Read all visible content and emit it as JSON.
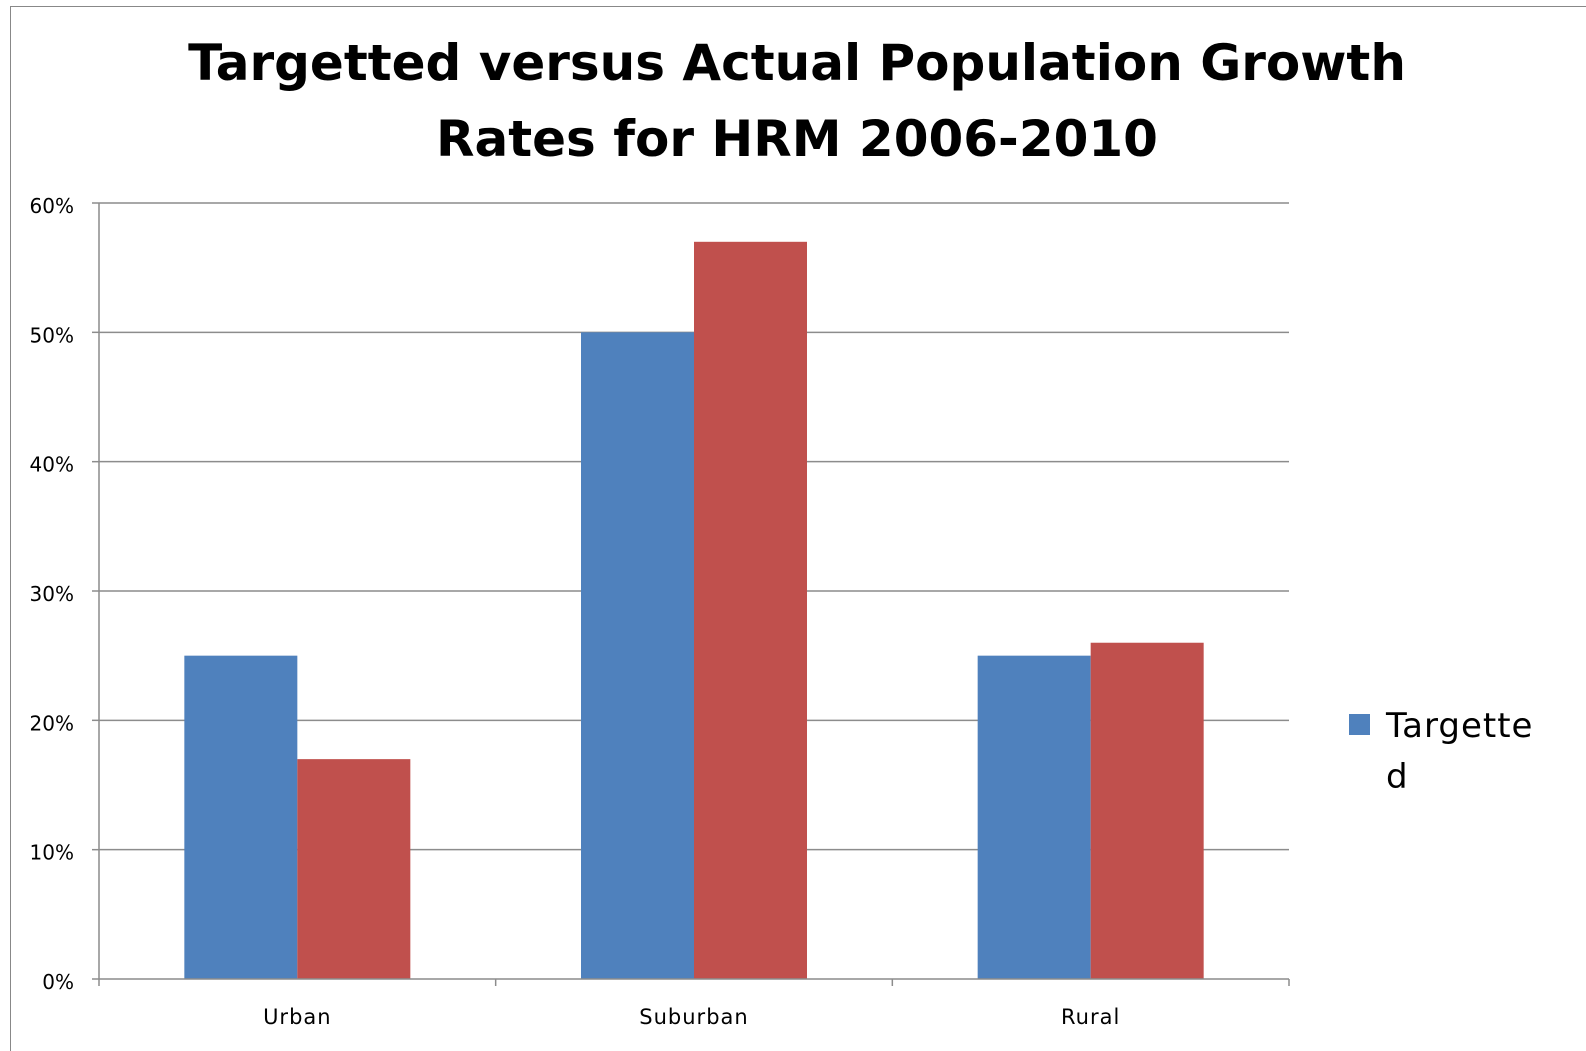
{
  "chart_data": {
    "type": "bar",
    "title": "Targetted versus Actual Population Growth Rates for HRM 2006-2010",
    "title_lines": [
      "Targetted versus Actual Population Growth",
      "Rates for HRM 2006-2010"
    ],
    "xlabel": "",
    "ylabel": "",
    "categories": [
      "Urban",
      "Suburban",
      "Rural"
    ],
    "series": [
      {
        "name": "Targetted",
        "legend_lines": [
          "Targette",
          "d"
        ],
        "color": "#4f81bd",
        "values": [
          25,
          50,
          25
        ]
      },
      {
        "color": "#c0504d",
        "values": [
          17,
          57,
          26
        ]
      }
    ],
    "ylim": [
      0,
      60
    ],
    "yticks": [
      0,
      10,
      20,
      30,
      40,
      50,
      60
    ],
    "ytick_labels": [
      "0%",
      "10%",
      "20%",
      "30%",
      "40%",
      "50%",
      "60%"
    ],
    "grid": true,
    "legend_position": "right"
  }
}
